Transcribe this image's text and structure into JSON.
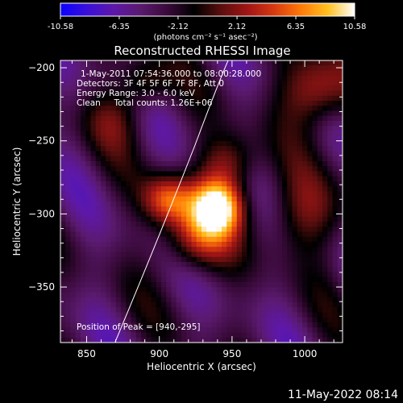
{
  "chart_data": {
    "type": "heatmap",
    "title": "Reconstructed RHESSI Image",
    "xlabel": "Heliocentric X (arcsec)",
    "ylabel": "Heliocentric Y (arcsec)",
    "xlim": [
      832,
      1026
    ],
    "ylim": [
      -388,
      -195
    ],
    "x_ticks": [
      850,
      900,
      950,
      1000
    ],
    "y_ticks": [
      -200,
      -250,
      -300,
      -350
    ],
    "colorbar": {
      "range": [
        -10.58,
        10.58
      ],
      "ticks": [
        "-10.58",
        "-6.35",
        "-2.12",
        "2.12",
        "6.35",
        "10.58"
      ],
      "colors": [
        "#0a00ff",
        "#3a10d8",
        "#5e18a8",
        "#5a1a6e",
        "#3a0a3a",
        "#000000",
        "#5a0e0e",
        "#a01515",
        "#d83a10",
        "#ff7a08",
        "#ffc020",
        "#ffffff"
      ],
      "units_label": "(photons cm⁻² s⁻¹ asec⁻²)"
    },
    "annotations": [
      "1-May-2011 07:54:36.000 to 08:00:28.000",
      "Detectors: 3F 4F 5F 6F 7F 8F, Att 0",
      "Energy Range: 3.0 - 6.0 keV",
      "Clean     Total counts: 1.26E+06"
    ],
    "peak_label": "Position of Peak = [940,-295]",
    "peak": [
      940,
      -295
    ]
  },
  "footer": {
    "timestamp": "11-May-2022 08:14"
  }
}
